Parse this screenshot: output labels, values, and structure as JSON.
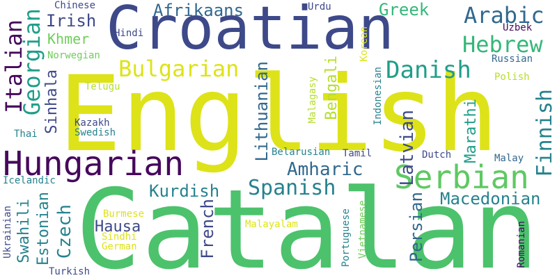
{
  "palette": {
    "dark_purple": "#46085c",
    "indigo": "#3e4989",
    "blue": "#31688e",
    "teal": "#26828e",
    "sea": "#1f9e89",
    "green": "#35b779",
    "light_green": "#6ece58",
    "yellow_green": "#b5de2b",
    "yellow": "#dde318",
    "background": "#ffffff"
  },
  "words": [
    {
      "text": "English",
      "color": "#dde318",
      "orientation": "horizontal"
    },
    {
      "text": "Catalan",
      "color": "#4cc26c",
      "orientation": "horizontal"
    },
    {
      "text": "Croatian",
      "color": "#3e4989",
      "orientation": "horizontal"
    },
    {
      "text": "Hungarian",
      "color": "#46085c",
      "orientation": "horizontal"
    },
    {
      "text": "Serbian",
      "color": "#5ec962",
      "orientation": "horizontal"
    },
    {
      "text": "Afrikaans",
      "color": "#31688e",
      "orientation": "horizontal"
    },
    {
      "text": "Arabic",
      "color": "#31688e",
      "orientation": "horizontal"
    },
    {
      "text": "Hebrew",
      "color": "#35b779",
      "orientation": "horizontal"
    },
    {
      "text": "Greek",
      "color": "#35b779",
      "orientation": "horizontal"
    },
    {
      "text": "Irish",
      "color": "#3e4989",
      "orientation": "horizontal"
    },
    {
      "text": "Khmer",
      "color": "#6ece58",
      "orientation": "horizontal"
    },
    {
      "text": "Chinese",
      "color": "#3e4989",
      "orientation": "horizontal"
    },
    {
      "text": "Hindi",
      "color": "#3e4989",
      "orientation": "horizontal"
    },
    {
      "text": "Norwegian",
      "color": "#6ece58",
      "orientation": "horizontal"
    },
    {
      "text": "Bulgarian",
      "color": "#dde318",
      "orientation": "horizontal"
    },
    {
      "text": "Danish",
      "color": "#1f9e89",
      "orientation": "horizontal"
    },
    {
      "text": "Urdu",
      "color": "#3e4989",
      "orientation": "horizontal"
    },
    {
      "text": "Uzbek",
      "color": "#46085c",
      "orientation": "horizontal"
    },
    {
      "text": "Russian",
      "color": "#31688e",
      "orientation": "horizontal"
    },
    {
      "text": "Polish",
      "color": "#b5de2b",
      "orientation": "horizontal"
    },
    {
      "text": "Telugu",
      "color": "#b5de2b",
      "orientation": "horizontal"
    },
    {
      "text": "Kazakh",
      "color": "#3e4989",
      "orientation": "horizontal"
    },
    {
      "text": "Swedish",
      "color": "#26828e",
      "orientation": "horizontal"
    },
    {
      "text": "Thai",
      "color": "#26828e",
      "orientation": "horizontal"
    },
    {
      "text": "Belarusian",
      "color": "#26828e",
      "orientation": "horizontal"
    },
    {
      "text": "Tamil",
      "color": "#3e4989",
      "orientation": "horizontal"
    },
    {
      "text": "Dutch",
      "color": "#3e4989",
      "orientation": "horizontal"
    },
    {
      "text": "Malay",
      "color": "#31688e",
      "orientation": "horizontal"
    },
    {
      "text": "Amharic",
      "color": "#31688e",
      "orientation": "horizontal"
    },
    {
      "text": "Spanish",
      "color": "#26828e",
      "orientation": "horizontal"
    },
    {
      "text": "Kurdish",
      "color": "#26828e",
      "orientation": "horizontal"
    },
    {
      "text": "Macedonian",
      "color": "#26828e",
      "orientation": "horizontal"
    },
    {
      "text": "Icelandic",
      "color": "#26828e",
      "orientation": "horizontal"
    },
    {
      "text": "Hausa",
      "color": "#3e4989",
      "orientation": "horizontal"
    },
    {
      "text": "Burmese",
      "color": "#dde318",
      "orientation": "horizontal"
    },
    {
      "text": "Sindhi",
      "color": "#dde318",
      "orientation": "horizontal"
    },
    {
      "text": "German",
      "color": "#dde318",
      "orientation": "horizontal"
    },
    {
      "text": "Malayalam",
      "color": "#dde318",
      "orientation": "horizontal"
    },
    {
      "text": "Turkish",
      "color": "#3e4989",
      "orientation": "horizontal"
    },
    {
      "text": "Italian",
      "color": "#46085c",
      "orientation": "vertical"
    },
    {
      "text": "Georgian",
      "color": "#1f9e89",
      "orientation": "vertical"
    },
    {
      "text": "Sinhala",
      "color": "#3e4989",
      "orientation": "vertical"
    },
    {
      "text": "Lithuanian",
      "color": "#31688e",
      "orientation": "vertical"
    },
    {
      "text": "Bengali",
      "color": "#b5de2b",
      "orientation": "vertical"
    },
    {
      "text": "Malagasy",
      "color": "#b5de2b",
      "orientation": "vertical"
    },
    {
      "text": "Korean",
      "color": "#dde318",
      "orientation": "vertical"
    },
    {
      "text": "Indonesian",
      "color": "#26828e",
      "orientation": "vertical"
    },
    {
      "text": "Latvian",
      "color": "#3e4989",
      "orientation": "vertical"
    },
    {
      "text": "Marathi",
      "color": "#1f9e89",
      "orientation": "vertical"
    },
    {
      "text": "Finnish",
      "color": "#26828e",
      "orientation": "vertical"
    },
    {
      "text": "Swahili",
      "color": "#26828e",
      "orientation": "vertical"
    },
    {
      "text": "Estonian",
      "color": "#26828e",
      "orientation": "vertical"
    },
    {
      "text": "Czech",
      "color": "#26828e",
      "orientation": "vertical"
    },
    {
      "text": "French",
      "color": "#3e4989",
      "orientation": "vertical"
    },
    {
      "text": "Ukrainian",
      "color": "#3e4989",
      "orientation": "vertical"
    },
    {
      "text": "Portuguese",
      "color": "#26828e",
      "orientation": "vertical"
    },
    {
      "text": "Vietnamese",
      "color": "#6ece58",
      "orientation": "vertical"
    },
    {
      "text": "Persian",
      "color": "#31688e",
      "orientation": "vertical"
    },
    {
      "text": "Romanian",
      "color": "#46085c",
      "orientation": "vertical"
    }
  ]
}
